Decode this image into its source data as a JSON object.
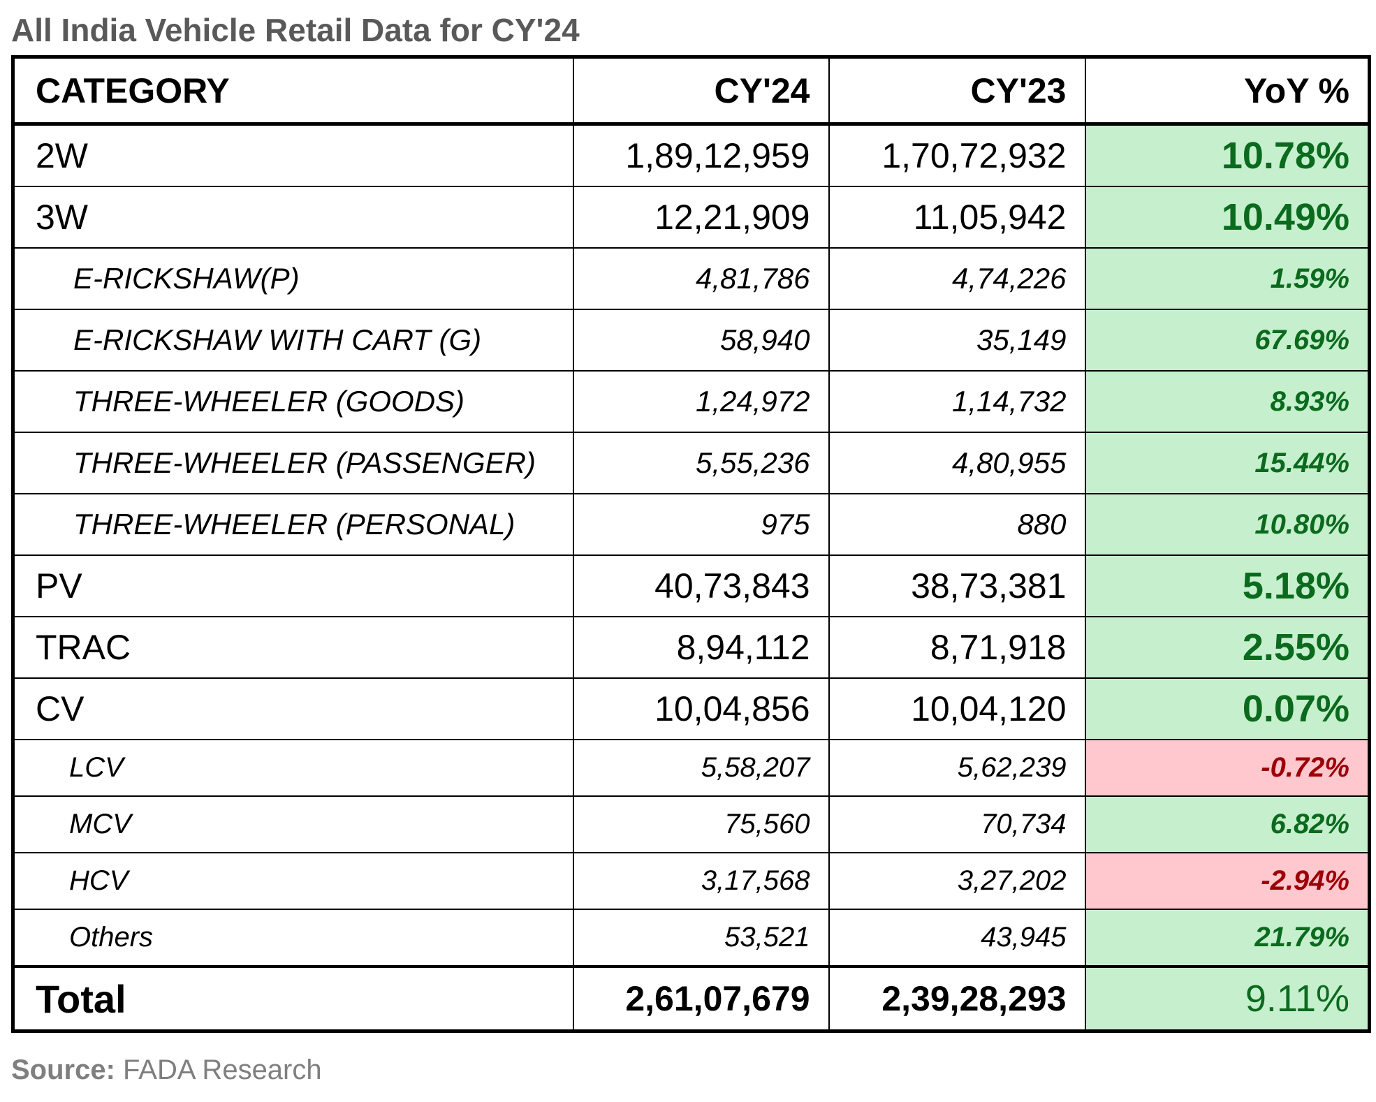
{
  "title": "All India Vehicle Retail Data for CY'24",
  "table": {
    "headers": [
      "CATEGORY",
      "CY'24",
      "CY'23",
      "YoY %"
    ],
    "rows": [
      {
        "category": "2W",
        "cy24": "1,89,12,959",
        "cy23": "1,70,72,932",
        "yoy": "10.78%",
        "level": "main",
        "trend": "pos"
      },
      {
        "category": "3W",
        "cy24": "12,21,909",
        "cy23": "11,05,942",
        "yoy": "10.49%",
        "level": "main",
        "trend": "pos"
      },
      {
        "category": "E-RICKSHAW(P)",
        "cy24": "4,81,786",
        "cy23": "4,74,226",
        "yoy": "1.59%",
        "level": "sub",
        "trend": "pos"
      },
      {
        "category": "E-RICKSHAW WITH CART (G)",
        "cy24": "58,940",
        "cy23": "35,149",
        "yoy": "67.69%",
        "level": "sub",
        "trend": "pos"
      },
      {
        "category": "THREE-WHEELER (GOODS)",
        "cy24": "1,24,972",
        "cy23": "1,14,732",
        "yoy": "8.93%",
        "level": "sub",
        "trend": "pos"
      },
      {
        "category": "THREE-WHEELER (PASSENGER)",
        "cy24": "5,55,236",
        "cy23": "4,80,955",
        "yoy": "15.44%",
        "level": "sub",
        "trend": "pos"
      },
      {
        "category": "THREE-WHEELER (PERSONAL)",
        "cy24": "975",
        "cy23": "880",
        "yoy": "10.80%",
        "level": "sub",
        "trend": "pos"
      },
      {
        "category": "PV",
        "cy24": "40,73,843",
        "cy23": "38,73,381",
        "yoy": "5.18%",
        "level": "main",
        "trend": "pos"
      },
      {
        "category": "TRAC",
        "cy24": "8,94,112",
        "cy23": "8,71,918",
        "yoy": "2.55%",
        "level": "main",
        "trend": "pos"
      },
      {
        "category": "CV",
        "cy24": "10,04,856",
        "cy23": "10,04,120",
        "yoy": "0.07%",
        "level": "main",
        "trend": "pos"
      },
      {
        "category": "LCV",
        "cy24": "5,58,207",
        "cy23": "5,62,239",
        "yoy": "-0.72%",
        "level": "sub2",
        "trend": "neg"
      },
      {
        "category": "MCV",
        "cy24": "75,560",
        "cy23": "70,734",
        "yoy": "6.82%",
        "level": "sub2",
        "trend": "pos"
      },
      {
        "category": "HCV",
        "cy24": "3,17,568",
        "cy23": "3,27,202",
        "yoy": "-2.94%",
        "level": "sub2",
        "trend": "neg"
      },
      {
        "category": "Others",
        "cy24": "53,521",
        "cy23": "43,945",
        "yoy": "21.79%",
        "level": "sub2",
        "trend": "pos"
      }
    ],
    "total": {
      "category": "Total",
      "cy24": "2,61,07,679",
      "cy23": "2,39,28,293",
      "yoy": "9.11%"
    }
  },
  "colors": {
    "positive_fill": "#c6efce",
    "positive_text": "#0b6a1d",
    "negative_fill": "#ffc7ce",
    "negative_text": "#9c0006"
  },
  "source": {
    "label": "Source:",
    "text": " FADA Research"
  }
}
